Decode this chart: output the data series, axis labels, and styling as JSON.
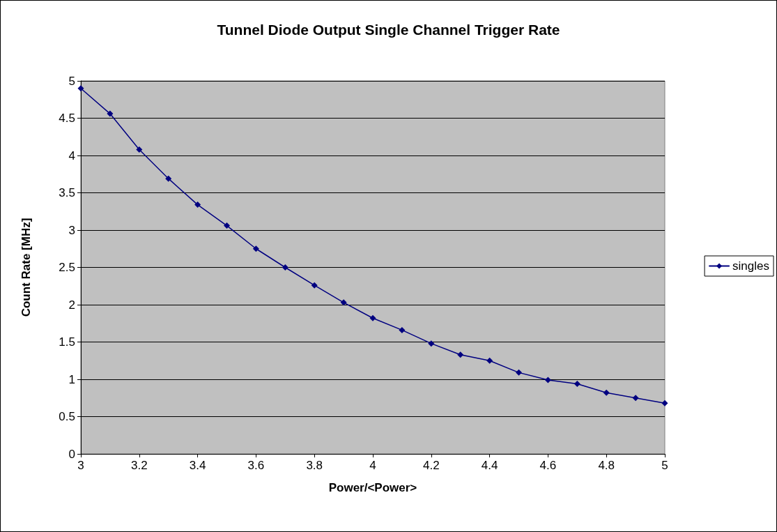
{
  "chart_data": {
    "type": "line",
    "title": "Tunnel Diode Output Single Channel Trigger Rate",
    "xlabel": "Power/<Power>",
    "ylabel": "Count Rate [MHz]",
    "x": [
      3,
      3.1,
      3.2,
      3.3,
      3.4,
      3.5,
      3.6,
      3.7,
      3.8,
      3.9,
      4,
      4.1,
      4.2,
      4.3,
      4.4,
      4.5,
      4.6,
      4.7,
      4.8,
      4.9,
      5
    ],
    "series": [
      {
        "name": "singles",
        "color": "#000080",
        "values": [
          4.9,
          4.56,
          4.08,
          3.69,
          3.34,
          3.06,
          2.75,
          2.5,
          2.26,
          2.03,
          1.82,
          1.66,
          1.48,
          1.33,
          1.25,
          1.09,
          0.99,
          0.94,
          0.82,
          0.75,
          0.68
        ]
      }
    ],
    "xlim": [
      3,
      5
    ],
    "xticks": [
      3,
      3.2,
      3.4,
      3.6,
      3.8,
      4,
      4.2,
      4.4,
      4.6,
      4.8,
      5
    ],
    "ylim": [
      0,
      5
    ],
    "yticks": [
      0,
      0.5,
      1,
      1.5,
      2,
      2.5,
      3,
      3.5,
      4,
      4.5,
      5
    ],
    "grid": "y",
    "legend": "right",
    "marker": "diamond",
    "line_style": "solid"
  }
}
